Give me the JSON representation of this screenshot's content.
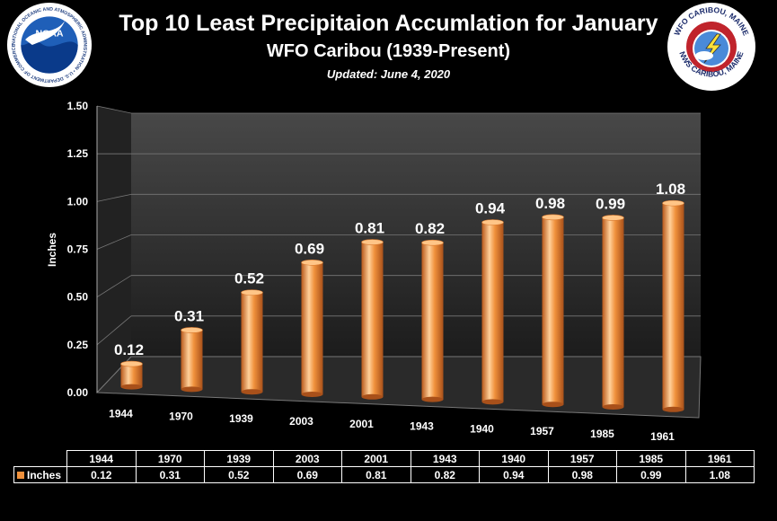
{
  "header": {
    "title": "Top 10 Least Precipitaion Accumlation for January",
    "subtitle": "WFO Caribou (1939-Present)",
    "updated": "Updated: June 4, 2020"
  },
  "logos": {
    "noaa": {
      "center_text": "NOAA",
      "ring_text": "NATIONAL OCEANIC AND ATMOSPHERIC ADMINISTRATION • U.S. DEPARTMENT OF COMMERCE"
    },
    "nws": {
      "top_text": "WFO CARIBOU, MAINE",
      "middle_text": "NATIONAL WEATHER SERVICE",
      "bottom_text": "NWS CARIBOU, MAINE"
    }
  },
  "colors": {
    "bar": "#f0913c",
    "bar_dark": "#b8581a",
    "bar_light": "#ffd09a",
    "background": "#000000",
    "wall": "#3a3a3a"
  },
  "chart_data": {
    "type": "bar",
    "ylabel": "Inches",
    "ylim": [
      0,
      1.5
    ],
    "yticks": [
      "0.00",
      "0.25",
      "0.50",
      "0.75",
      "1.00",
      "1.25",
      "1.50"
    ],
    "grid": true,
    "categories": [
      "1944",
      "1970",
      "1939",
      "2003",
      "2001",
      "1943",
      "1940",
      "1957",
      "1985",
      "1961"
    ],
    "series": [
      {
        "name": "Inches",
        "values": [
          0.12,
          0.31,
          0.52,
          0.69,
          0.81,
          0.82,
          0.94,
          0.98,
          0.99,
          1.08
        ]
      }
    ],
    "data_table": true
  }
}
